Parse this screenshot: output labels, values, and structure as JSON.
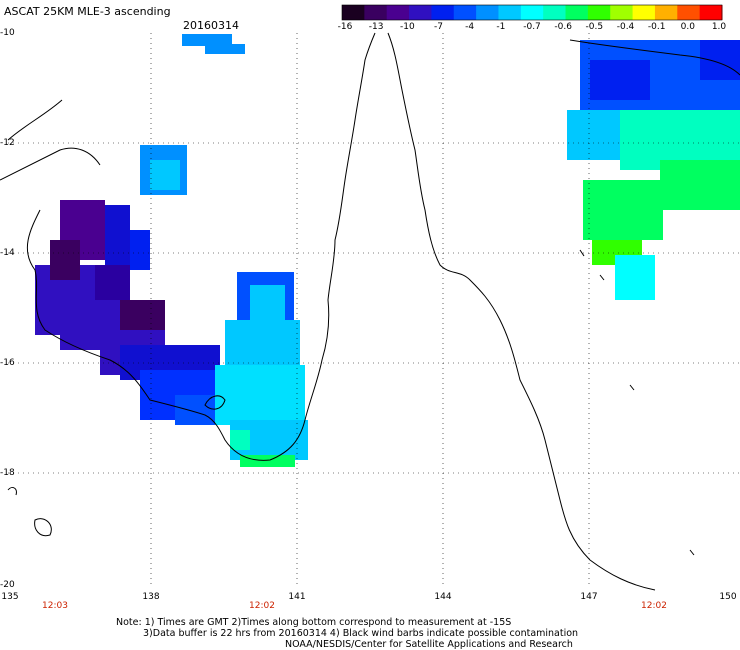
{
  "title": "ASCAT 25KM MLE-3 ascending",
  "date": "20160314",
  "colorbar": {
    "colors": [
      "#1a0020",
      "#3a0060",
      "#4a0090",
      "#3010c0",
      "#0020f0",
      "#0050ff",
      "#0090ff",
      "#00c8ff",
      "#00ffff",
      "#00ffc0",
      "#00ff60",
      "#30ff00",
      "#a0ff00",
      "#ffff00",
      "#ffb000",
      "#ff5000",
      "#ff0000"
    ],
    "ticks": [
      "-16",
      "-13",
      "-10",
      "-7",
      "-4",
      "-1",
      "-0.7",
      "-0.6",
      "-0.5",
      "-0.4",
      "-0.1",
      "0.0",
      "1.0"
    ]
  },
  "lat_labels": [
    "-10",
    "-12",
    "-14",
    "-16",
    "-18",
    "-20"
  ],
  "lon_labels": [
    "135",
    "138",
    "141",
    "144",
    "147",
    "150"
  ],
  "time_labels": [
    "12:03",
    "12:02",
    "12:02"
  ],
  "notes": [
    "Note: 1) Times are GMT 2)Times along bottom correspond to measurement at -15S",
    "3)Data buffer is 22 hrs from 20160314 4) Black wind barbs indicate possible contamination",
    "NOAA/NESDIS/Center for Satellite Applications and Research"
  ]
}
